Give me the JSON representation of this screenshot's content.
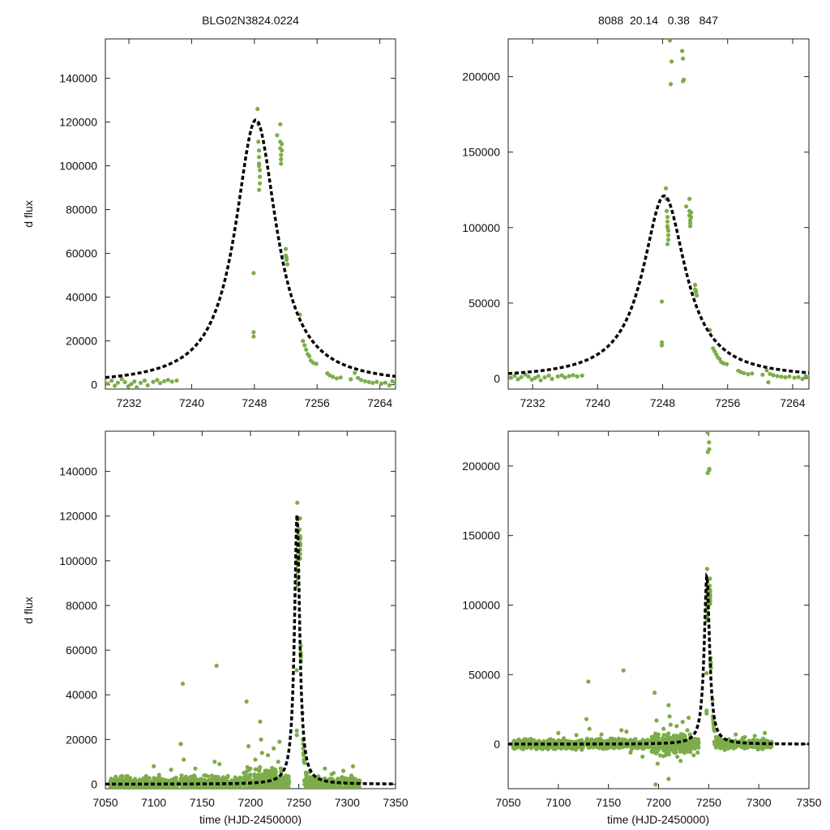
{
  "header": {
    "left": "BLG02N3824.0224",
    "right": "8088  20.14   0.38   847"
  },
  "colors": {
    "points": "#7cad4a",
    "model": "#000000",
    "axes": "#222222"
  },
  "model": {
    "t0": 7248.2,
    "peak": 121000,
    "tau": 3.2,
    "form": "lorentzian"
  },
  "chart_data": [
    {
      "id": "top-left",
      "type": "scatter",
      "title": "",
      "xlabel": "",
      "ylabel": "d flux",
      "xlim": [
        7229,
        7266
      ],
      "ylim": [
        -2000,
        158000
      ],
      "xticks": [
        7232,
        7240,
        7248,
        7256,
        7264
      ],
      "yticks": [
        0,
        20000,
        40000,
        60000,
        80000,
        100000,
        120000,
        140000
      ]
    },
    {
      "id": "top-right",
      "type": "scatter",
      "title": "",
      "xlabel": "",
      "ylabel": "",
      "xlim": [
        7229,
        7266
      ],
      "ylim": [
        -7000,
        225000
      ],
      "xticks": [
        7232,
        7240,
        7248,
        7256,
        7264
      ],
      "yticks": [
        0,
        50000,
        100000,
        150000,
        200000
      ]
    },
    {
      "id": "bottom-left",
      "type": "scatter",
      "title": "",
      "xlabel": "time (HJD-2450000)",
      "ylabel": "d flux",
      "xlim": [
        7050,
        7350
      ],
      "ylim": [
        -2000,
        158000
      ],
      "xticks": [
        7050,
        7100,
        7150,
        7200,
        7250,
        7300,
        7350
      ],
      "yticks": [
        0,
        20000,
        40000,
        60000,
        80000,
        100000,
        120000,
        140000
      ]
    },
    {
      "id": "bottom-right",
      "type": "scatter",
      "title": "",
      "xlabel": "time (HJD-2450000)",
      "ylabel": "",
      "xlim": [
        7050,
        7350
      ],
      "ylim": [
        -32000,
        225000
      ],
      "xticks": [
        7050,
        7100,
        7150,
        7200,
        7250,
        7300,
        7350
      ],
      "yticks": [
        0,
        50000,
        100000,
        150000,
        200000
      ]
    }
  ],
  "points_zoom": [
    [
      7229.3,
      500
    ],
    [
      7229.8,
      1800
    ],
    [
      7230.2,
      -500
    ],
    [
      7230.6,
      900
    ],
    [
      7231.1,
      2600
    ],
    [
      7231.5,
      1200
    ],
    [
      7231.9,
      -800
    ],
    [
      7232.3,
      300
    ],
    [
      7232.7,
      1500
    ],
    [
      7233.0,
      -1200
    ],
    [
      7233.5,
      800
    ],
    [
      7234.0,
      1900
    ],
    [
      7234.4,
      -300
    ],
    [
      7235.1,
      1300
    ],
    [
      7235.6,
      2100
    ],
    [
      7236.0,
      700
    ],
    [
      7236.5,
      1600
    ],
    [
      7237.0,
      2200
    ],
    [
      7237.5,
      1400
    ],
    [
      7238.1,
      1900
    ],
    [
      7247.9,
      51000
    ],
    [
      7247.9,
      24000
    ],
    [
      7247.9,
      22000
    ],
    [
      7248.4,
      126000
    ],
    [
      7248.5,
      119000
    ],
    [
      7248.5,
      111000
    ],
    [
      7248.6,
      107000
    ],
    [
      7248.6,
      104000
    ],
    [
      7248.6,
      101000
    ],
    [
      7248.7,
      98000
    ],
    [
      7248.7,
      95000
    ],
    [
      7248.7,
      92000
    ],
    [
      7248.6,
      89000
    ],
    [
      7248.6,
      100000
    ],
    [
      7250.9,
      114000
    ],
    [
      7251.3,
      119000
    ],
    [
      7251.3,
      111000
    ],
    [
      7251.3,
      108000
    ],
    [
      7251.4,
      105000
    ],
    [
      7251.4,
      103000
    ],
    [
      7251.5,
      110000
    ],
    [
      7251.5,
      107000
    ],
    [
      7251.4,
      101000
    ],
    [
      7252.0,
      62000
    ],
    [
      7252.0,
      59000
    ],
    [
      7252.1,
      57000
    ],
    [
      7252.2,
      55000
    ],
    [
      7252.1,
      58000
    ],
    [
      7253.8,
      32000
    ],
    [
      7254.2,
      20000
    ],
    [
      7254.4,
      18000
    ],
    [
      7254.6,
      16000
    ],
    [
      7254.8,
      14000
    ],
    [
      7255.0,
      13000
    ],
    [
      7255.2,
      11000
    ],
    [
      7255.5,
      10000
    ],
    [
      7255.9,
      9500
    ],
    [
      7257.3,
      5200
    ],
    [
      7257.6,
      4300
    ],
    [
      7258.0,
      3600
    ],
    [
      7258.5,
      2900
    ],
    [
      7259.0,
      3300
    ],
    [
      7260.3,
      2500
    ],
    [
      7260.8,
      5400
    ],
    [
      7261.2,
      3100
    ],
    [
      7261.6,
      2200
    ],
    [
      7262.1,
      1600
    ],
    [
      7262.6,
      1200
    ],
    [
      7263.1,
      800
    ],
    [
      7263.6,
      1300
    ],
    [
      7264.2,
      500
    ],
    [
      7264.7,
      900
    ],
    [
      7265.2,
      -300
    ],
    [
      7265.6,
      1600
    ],
    [
      7266.0,
      700
    ],
    [
      7261.0,
      -2500
    ]
  ],
  "points_high": [
    [
      7248.9,
      224000
    ],
    [
      7249.1,
      210000
    ],
    [
      7249.0,
      195000
    ],
    [
      7250.4,
      217000
    ],
    [
      7250.5,
      212000
    ],
    [
      7250.6,
      198000
    ],
    [
      7250.5,
      197000
    ]
  ],
  "points_full_outliers": [
    [
      7100,
      8000
    ],
    [
      7128,
      18000
    ],
    [
      7130,
      45000
    ],
    [
      7131,
      11000
    ],
    [
      7163,
      10000
    ],
    [
      7165,
      53000
    ],
    [
      7168,
      9000
    ],
    [
      7196,
      37000
    ],
    [
      7198,
      17000
    ],
    [
      7205,
      11000
    ],
    [
      7210,
      28000
    ],
    [
      7211,
      20000
    ],
    [
      7212,
      14000
    ],
    [
      7218,
      13000
    ],
    [
      7224,
      16000
    ],
    [
      7230,
      19000
    ],
    [
      7239,
      -6000
    ],
    [
      7199,
      -14000
    ],
    [
      7184,
      -9000
    ],
    [
      7222,
      -12000
    ],
    [
      7210,
      -25000
    ],
    [
      7197,
      -29000
    ],
    [
      7235,
      -8000
    ],
    [
      7172,
      -6000
    ],
    [
      7306,
      8000
    ],
    [
      7296,
      6000
    ],
    [
      7286,
      5000
    ],
    [
      7277,
      7000
    ],
    [
      7143,
      7000
    ],
    [
      7118,
      6500
    ]
  ]
}
